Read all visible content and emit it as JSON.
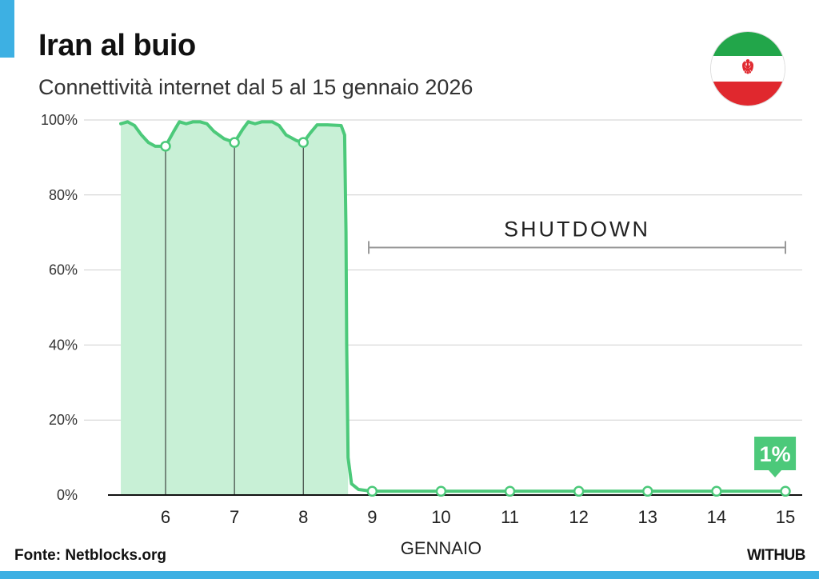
{
  "title": "Iran al buio",
  "subtitle": "Connettività internet dal 5 al 15 gennaio 2026",
  "source": "Fonte: Netblocks.org",
  "brand": "WITHUB",
  "flag_icon": "iran-flag-icon",
  "colors": {
    "accent": "#3db0e3",
    "line": "#4cc97a",
    "fill": "#c8f0d6",
    "grid": "#cfcfcf",
    "annotation": "#999999"
  },
  "chart_data": {
    "type": "area",
    "xlabel": "GENNAIO",
    "ylabel": "",
    "ylim": [
      0,
      100
    ],
    "xlim": [
      5.3,
      15
    ],
    "y_ticks": [
      "0%",
      "20%",
      "40%",
      "60%",
      "80%",
      "100%"
    ],
    "x_ticks": [
      "6",
      "7",
      "8",
      "9",
      "10",
      "11",
      "12",
      "13",
      "14",
      "15"
    ],
    "grid": true,
    "series": [
      {
        "values": [
          [
            5.35,
            99
          ],
          [
            5.45,
            99.5
          ],
          [
            5.55,
            98.5
          ],
          [
            5.65,
            96
          ],
          [
            5.75,
            94
          ],
          [
            5.85,
            93
          ],
          [
            6.0,
            93
          ],
          [
            6.12,
            97
          ],
          [
            6.2,
            99.5
          ],
          [
            6.3,
            99
          ],
          [
            6.4,
            99.5
          ],
          [
            6.5,
            99.5
          ],
          [
            6.6,
            99
          ],
          [
            6.7,
            97
          ],
          [
            6.85,
            95
          ],
          [
            7.0,
            94
          ],
          [
            7.12,
            97.5
          ],
          [
            7.2,
            99.5
          ],
          [
            7.3,
            99
          ],
          [
            7.4,
            99.5
          ],
          [
            7.55,
            99.5
          ],
          [
            7.65,
            98.5
          ],
          [
            7.75,
            96
          ],
          [
            7.9,
            94.5
          ],
          [
            8.0,
            94
          ],
          [
            8.1,
            96.5
          ],
          [
            8.2,
            98.7
          ],
          [
            8.35,
            98.7
          ],
          [
            8.55,
            98.5
          ],
          [
            8.6,
            96
          ],
          [
            8.62,
            70
          ],
          [
            8.63,
            40
          ],
          [
            8.65,
            10
          ],
          [
            8.7,
            3
          ],
          [
            8.8,
            1.5
          ],
          [
            9.0,
            1
          ],
          [
            10,
            1
          ],
          [
            11,
            1
          ],
          [
            12,
            1
          ],
          [
            13,
            1
          ],
          [
            14,
            1
          ],
          [
            15,
            1
          ]
        ]
      }
    ],
    "markers": [
      {
        "x": 6,
        "y": 93
      },
      {
        "x": 7,
        "y": 94
      },
      {
        "x": 8,
        "y": 94
      },
      {
        "x": 9,
        "y": 1
      },
      {
        "x": 10,
        "y": 1
      },
      {
        "x": 11,
        "y": 1
      },
      {
        "x": 12,
        "y": 1
      },
      {
        "x": 13,
        "y": 1
      },
      {
        "x": 14,
        "y": 1
      },
      {
        "x": 15,
        "y": 1
      }
    ],
    "annotations": {
      "shutdown": {
        "label": "SHUTDOWN",
        "x_start": 8.95,
        "x_end": 15,
        "y": 66
      },
      "callout": {
        "label": "1%",
        "x": 14.85,
        "y": 1
      }
    }
  }
}
